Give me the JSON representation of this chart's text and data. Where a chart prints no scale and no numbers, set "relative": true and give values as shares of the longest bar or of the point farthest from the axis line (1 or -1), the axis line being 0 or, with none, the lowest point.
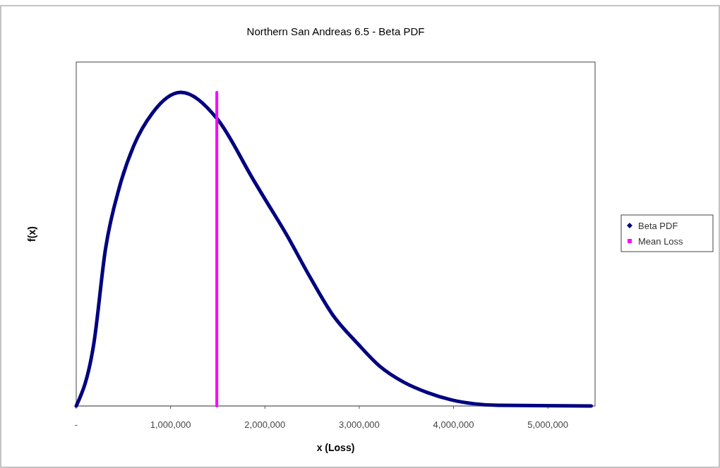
{
  "chart_data": {
    "type": "line",
    "title": "Northern San Andreas 6.5 - Beta PDF",
    "xlabel": "x (Loss)",
    "ylabel": "f(x)",
    "relative": true,
    "xlim": [
      0,
      5500000
    ],
    "xticks": [
      {
        "value": 0,
        "label": "-"
      },
      {
        "value": 1000000,
        "label": "1,000,000"
      },
      {
        "value": 2000000,
        "label": "2,000,000"
      },
      {
        "value": 3000000,
        "label": "3,000,000"
      },
      {
        "value": 4000000,
        "label": "4,000,000"
      },
      {
        "value": 5000000,
        "label": "5,000,000"
      }
    ],
    "legend": "right",
    "grid": false,
    "series": [
      {
        "name": "Beta PDF",
        "color": "#000080",
        "x": [
          0,
          187000,
          310000,
          460000,
          610000,
          810000,
          1110000,
          1490000,
          1880000,
          1980000,
          2230000,
          2480000,
          2720000,
          2980000,
          3220000,
          3470000,
          3720000,
          3970000,
          4220000,
          4470000,
          5460000
        ],
        "values": [
          0,
          0.2,
          0.5,
          0.7,
          0.83,
          0.935,
          1,
          0.917,
          0.72,
          0.67,
          0.546,
          0.41,
          0.29,
          0.2,
          0.126,
          0.076,
          0.043,
          0.02,
          0.007,
          0.002,
          0
        ]
      },
      {
        "name": "Mean Loss",
        "color": "#ff00ff",
        "x": [
          1490000,
          1490000
        ],
        "values": [
          0,
          1
        ]
      }
    ]
  }
}
